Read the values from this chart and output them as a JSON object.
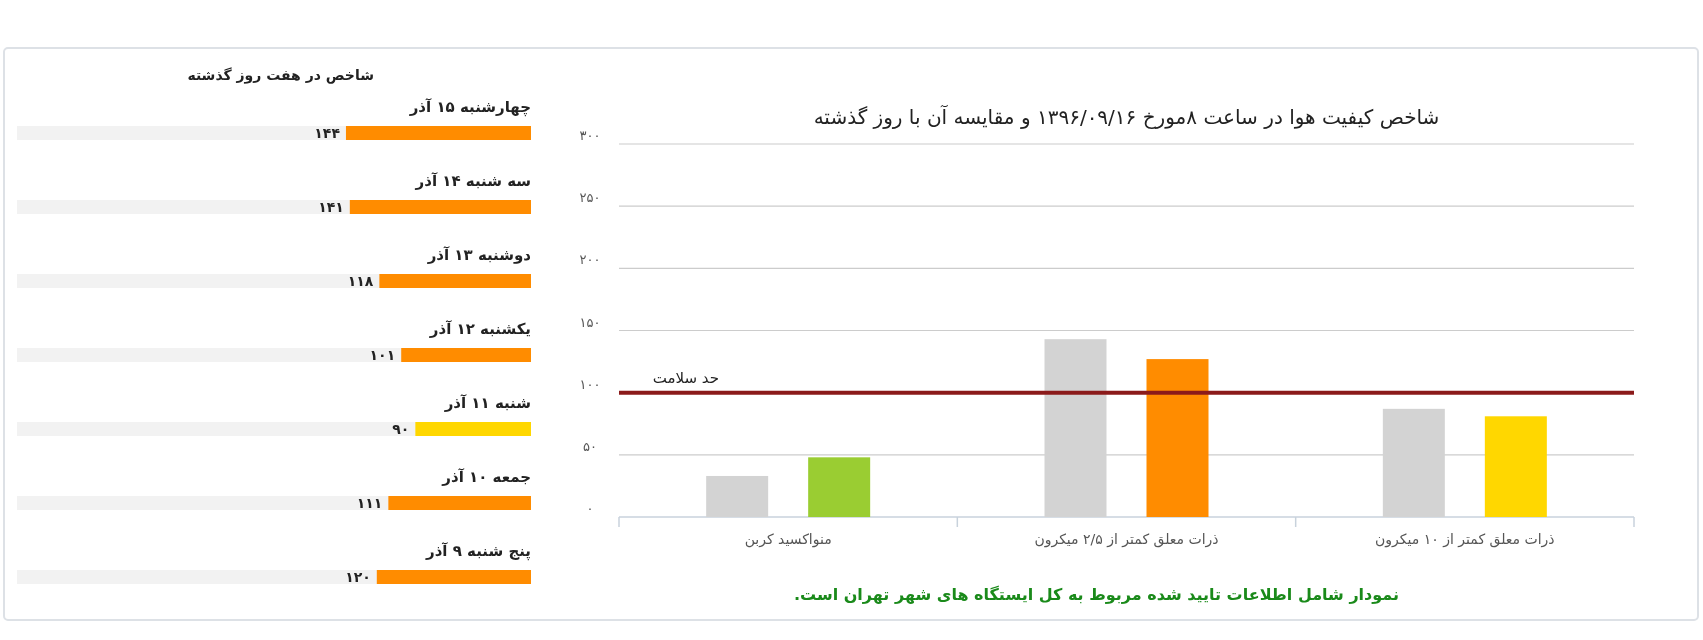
{
  "chart_data": [
    {
      "type": "bar",
      "title": "شاخص در هفت روز گذشته",
      "orientation": "horizontal",
      "categories": [
        "چهارشنبه ۱۵ آذر",
        "سه شنبه ۱۴ آذر",
        "دوشنبه ۱۳ آذر",
        "یکشنبه ۱۲ آذر",
        "شنبه ۱۱ آذر",
        "جمعه ۱۰ آذر",
        "پنج شنبه ۹ آذر"
      ],
      "values": [
        144,
        141,
        118,
        101,
        90,
        111,
        120
      ],
      "colors": [
        "#ff8c00",
        "#ff8c00",
        "#ff8c00",
        "#ff8c00",
        "#ffd700",
        "#ff8c00",
        "#ff8c00"
      ],
      "value_labels": [
        "۱۴۴",
        "۱۴۱",
        "۱۱۸",
        "۱۰۱",
        "۹۰",
        "۱۱۱",
        "۱۲۰"
      ]
    },
    {
      "type": "bar",
      "title": "شاخص کیفیت هوا در ساعت ۸مورخ ۱۳۹۶/۰۹/۱۶ و مقایسه آن با روز گذشته",
      "categories": [
        "منواکسید کربن",
        "ذرات معلق کمتر از ۲/۵ میکرون",
        "ذرات معلق کمتر از ۱۰ میکرون"
      ],
      "series": [
        {
          "color": "#d3d3d3",
          "values": [
            33,
            143,
            87
          ]
        },
        {
          "colors": [
            "#9acd32",
            "#ff8c00",
            "#ffd700"
          ],
          "values": [
            48,
            127,
            81
          ]
        }
      ],
      "ylim": [
        0,
        300
      ],
      "yticks": [
        {
          "value": 0,
          "label": "۰"
        },
        {
          "value": 50,
          "label": "۵۰"
        },
        {
          "value": 100,
          "label": "۱۰۰"
        },
        {
          "value": 150,
          "label": "۱۵۰"
        },
        {
          "value": 200,
          "label": "۲۰۰"
        },
        {
          "value": 250,
          "label": "۲۵۰"
        },
        {
          "value": 300,
          "label": "۳۰۰"
        }
      ],
      "grid": "y",
      "ref_lines": [
        {
          "axis": "y",
          "value": 100,
          "label": "حد سلامت",
          "color": "#8b1a1a"
        }
      ],
      "annotations": [
        "نمودار شامل اطلاعات تایید شده مربوط به کل ایستگاه های شهر تهران است."
      ]
    }
  ]
}
